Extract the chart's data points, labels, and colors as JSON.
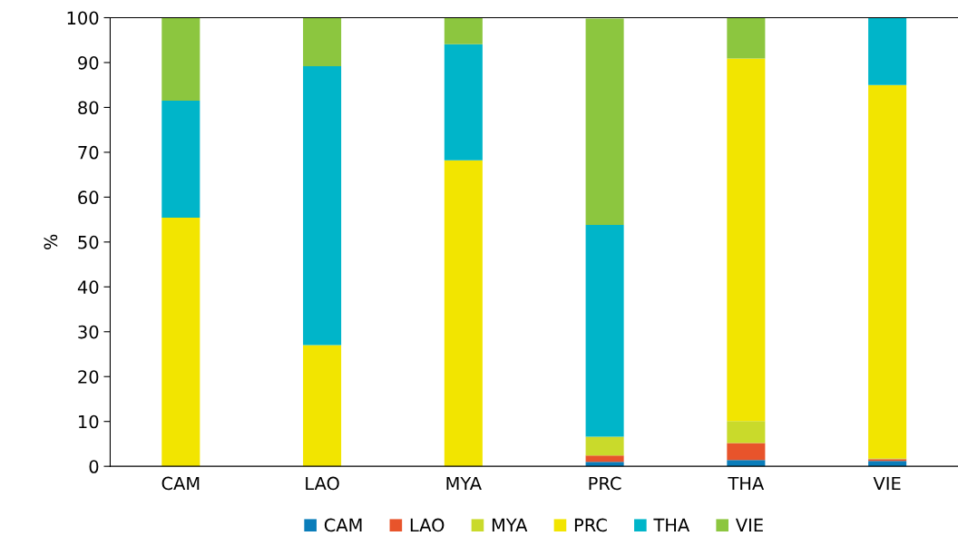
{
  "chart_data": {
    "type": "bar",
    "stacked": true,
    "ylabel": "%",
    "categories": [
      "CAM",
      "LAO",
      "MYA",
      "PRC",
      "THA",
      "VIE"
    ],
    "series": [
      {
        "name": "CAM",
        "color": "#0a7dba",
        "values": [
          0,
          0,
          0,
          1.0,
          1.4,
          1.2
        ]
      },
      {
        "name": "LAO",
        "color": "#e8542b",
        "values": [
          0,
          0,
          0,
          1.4,
          3.8,
          0.4
        ]
      },
      {
        "name": "MYA",
        "color": "#c9da2b",
        "values": [
          0,
          0,
          0,
          4.2,
          4.9,
          0.2
        ]
      },
      {
        "name": "PRC",
        "color": "#f2e500",
        "values": [
          55.4,
          27.0,
          68.2,
          0,
          80.8,
          83.2
        ]
      },
      {
        "name": "THA",
        "color": "#00b5c9",
        "values": [
          26.1,
          62.2,
          25.9,
          47.2,
          0,
          15.0
        ]
      },
      {
        "name": "VIE",
        "color": "#8cc63f",
        "values": [
          18.5,
          10.8,
          5.9,
          46.0,
          9.1,
          0
        ]
      }
    ],
    "ylim": [
      0,
      100
    ],
    "yticks": [
      0,
      10,
      20,
      30,
      40,
      50,
      60,
      70,
      80,
      90,
      100
    ],
    "grid": false,
    "legend": "bottom"
  }
}
